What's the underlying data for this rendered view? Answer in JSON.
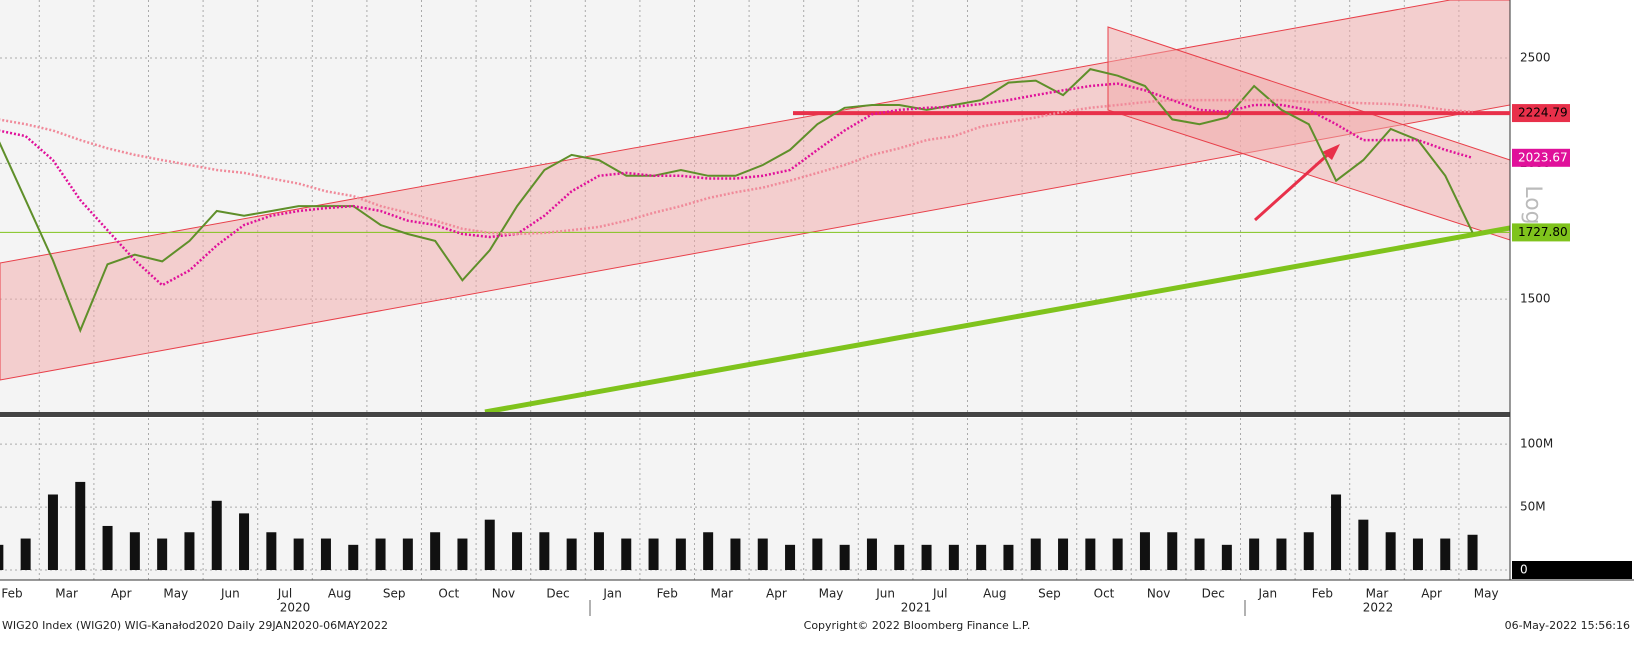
{
  "chart_data": {
    "type": "line",
    "log": true,
    "grid": true,
    "scale_label": "Log",
    "categories": [
      "Feb",
      null,
      "Mar",
      null,
      "Apr",
      null,
      "May",
      null,
      "Jun",
      null,
      "Jul",
      null,
      "Aug",
      null,
      "Sep",
      null,
      "Oct",
      null,
      "Nov",
      null,
      "Dec",
      null,
      "Jan",
      null,
      "Feb",
      null,
      "Mar",
      null,
      "Apr",
      null,
      "May",
      null,
      "Jun",
      null,
      "Jul",
      null,
      "Aug",
      null,
      "Sep",
      null,
      "Oct",
      null,
      "Nov",
      null,
      "Dec",
      null,
      "Jan",
      null,
      "Feb",
      null,
      "Mar",
      null,
      "Apr",
      null,
      "May",
      null
    ],
    "years": [
      "2020",
      "2021",
      "2022"
    ],
    "series": [
      {
        "color": "#5f8f2a",
        "values": [
          2101,
          1850,
          1629,
          1404,
          1615,
          1648,
          1625,
          1697,
          1808,
          1790,
          1808,
          1827,
          1827,
          1827,
          1755,
          1722,
          1697,
          1561,
          1664,
          1827,
          1972,
          2036,
          2014,
          1948,
          1948,
          1972,
          1948,
          1948,
          1993,
          2058,
          2173,
          2250,
          2263,
          2263,
          2240,
          2263,
          2287,
          2373,
          2383,
          2311,
          2442,
          2408,
          2356,
          2195,
          2173,
          2204,
          2356,
          2240,
          2173,
          1928,
          2014,
          2151,
          2101,
          1948,
          1727.8,
          null
        ]
      },
      {
        "color": "#e0109a",
        "values": [
          2144,
          2119,
          2014,
          1850,
          1736,
          1629,
          1545,
          1594,
          1681,
          1755,
          1790,
          1808,
          1819,
          1827,
          1808,
          1771,
          1755,
          1722,
          1711,
          1722,
          1790,
          1885,
          1948,
          1960,
          1948,
          1948,
          1937,
          1937,
          1948,
          1972,
          2058,
          2144,
          2219,
          2240,
          2250,
          2254,
          2268,
          2287,
          2311,
          2335,
          2356,
          2368,
          2335,
          2287,
          2240,
          2231,
          2263,
          2263,
          2240,
          2173,
          2101,
          2101,
          2101,
          2058,
          2023.67,
          null
        ]
      },
      {
        "color": "#f08a9a",
        "values": [
          2195,
          2173,
          2144,
          2101,
          2065,
          2036,
          2014,
          1993,
          1972,
          1960,
          1937,
          1916,
          1885,
          1866,
          1827,
          1801,
          1771,
          1741,
          1726,
          1722,
          1726,
          1736,
          1748,
          1771,
          1801,
          1827,
          1858,
          1881,
          1900,
          1928,
          1960,
          1993,
          2036,
          2065,
          2101,
          2119,
          2162,
          2184,
          2204,
          2231,
          2250,
          2263,
          2277,
          2287,
          2287,
          2287,
          2287,
          2287,
          2277,
          2277,
          2272,
          2268,
          2259,
          2240,
          2231,
          null
        ]
      }
    ],
    "ylim": [
      1181,
      2827
    ],
    "yticks": [
      1500,
      2000,
      2500
    ],
    "markers": [
      {
        "value": 2224.79,
        "color": "#e8304a"
      },
      {
        "value": 2023.67,
        "color": "#e0109a"
      },
      {
        "value": 1727.8,
        "label": "1727.80",
        "color": "#7fc31c"
      }
    ],
    "volume": {
      "type": "bar",
      "color": "#111111",
      "values": [
        20,
        25,
        60,
        70,
        35,
        30,
        25,
        30,
        55,
        45,
        30,
        25,
        25,
        20,
        25,
        25,
        30,
        25,
        40,
        30,
        30,
        25,
        30,
        25,
        25,
        25,
        30,
        25,
        25,
        20,
        25,
        20,
        25,
        20,
        20,
        20,
        20,
        20,
        25,
        25,
        25,
        25,
        30,
        30,
        25,
        20,
        25,
        25,
        30,
        60,
        40,
        30,
        25,
        25,
        28,
        null
      ],
      "ylim": [
        0,
        120
      ],
      "yticks": [
        {
          "value": 100,
          "label": "100M"
        },
        {
          "value": 50,
          "label": "50M"
        },
        0
      ]
    }
  },
  "footer": {
    "left": "WIG20 Index (WIG20) WIG-Kanałod2020  Daily 29JAN2020-06MAY2022",
    "center": "Copyright© 2022 Bloomberg Finance L.P.",
    "right": "06-May-2022 15:56:16"
  }
}
